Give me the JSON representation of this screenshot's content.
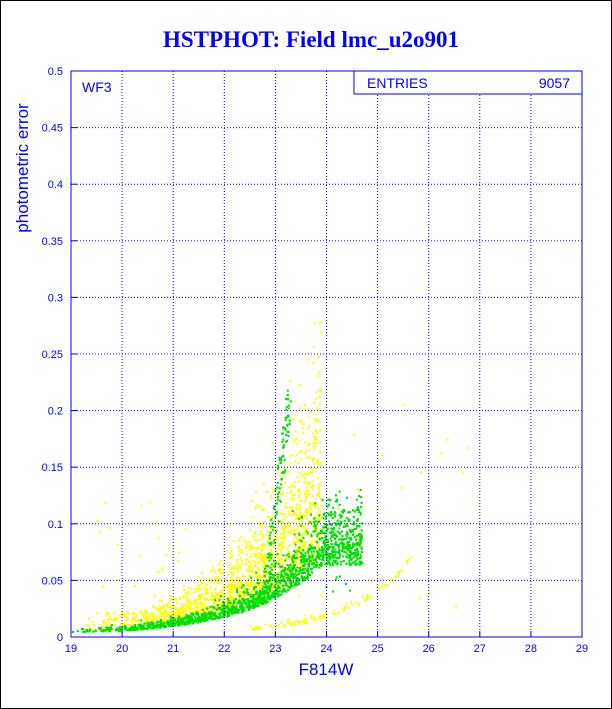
{
  "chart_data": {
    "type": "scatter",
    "title": "HSTPHOT: Field lmc_u2o901",
    "xlabel": "F814W",
    "ylabel": "photometric error",
    "xlim": [
      19,
      29
    ],
    "ylim": [
      0,
      0.5
    ],
    "x_ticks": [
      "19",
      "20",
      "21",
      "22",
      "23",
      "24",
      "25",
      "26",
      "27",
      "28",
      "29"
    ],
    "y_ticks": [
      "0",
      "0.05",
      "0.1",
      "0.15",
      "0.2",
      "0.25",
      "0.3",
      "0.35",
      "0.4",
      "0.45",
      "0.5"
    ],
    "grid": true,
    "panel_label": "WF3",
    "stats_box": {
      "label": "ENTRIES",
      "value": "9057",
      "position": "top-right"
    },
    "series": [
      {
        "color": "#ffff00",
        "description_points": "yellow"
      },
      {
        "color": "#00e000",
        "description_points": "green"
      }
    ],
    "point_counts": {
      "yellow": 2200,
      "green": 2600
    }
  }
}
